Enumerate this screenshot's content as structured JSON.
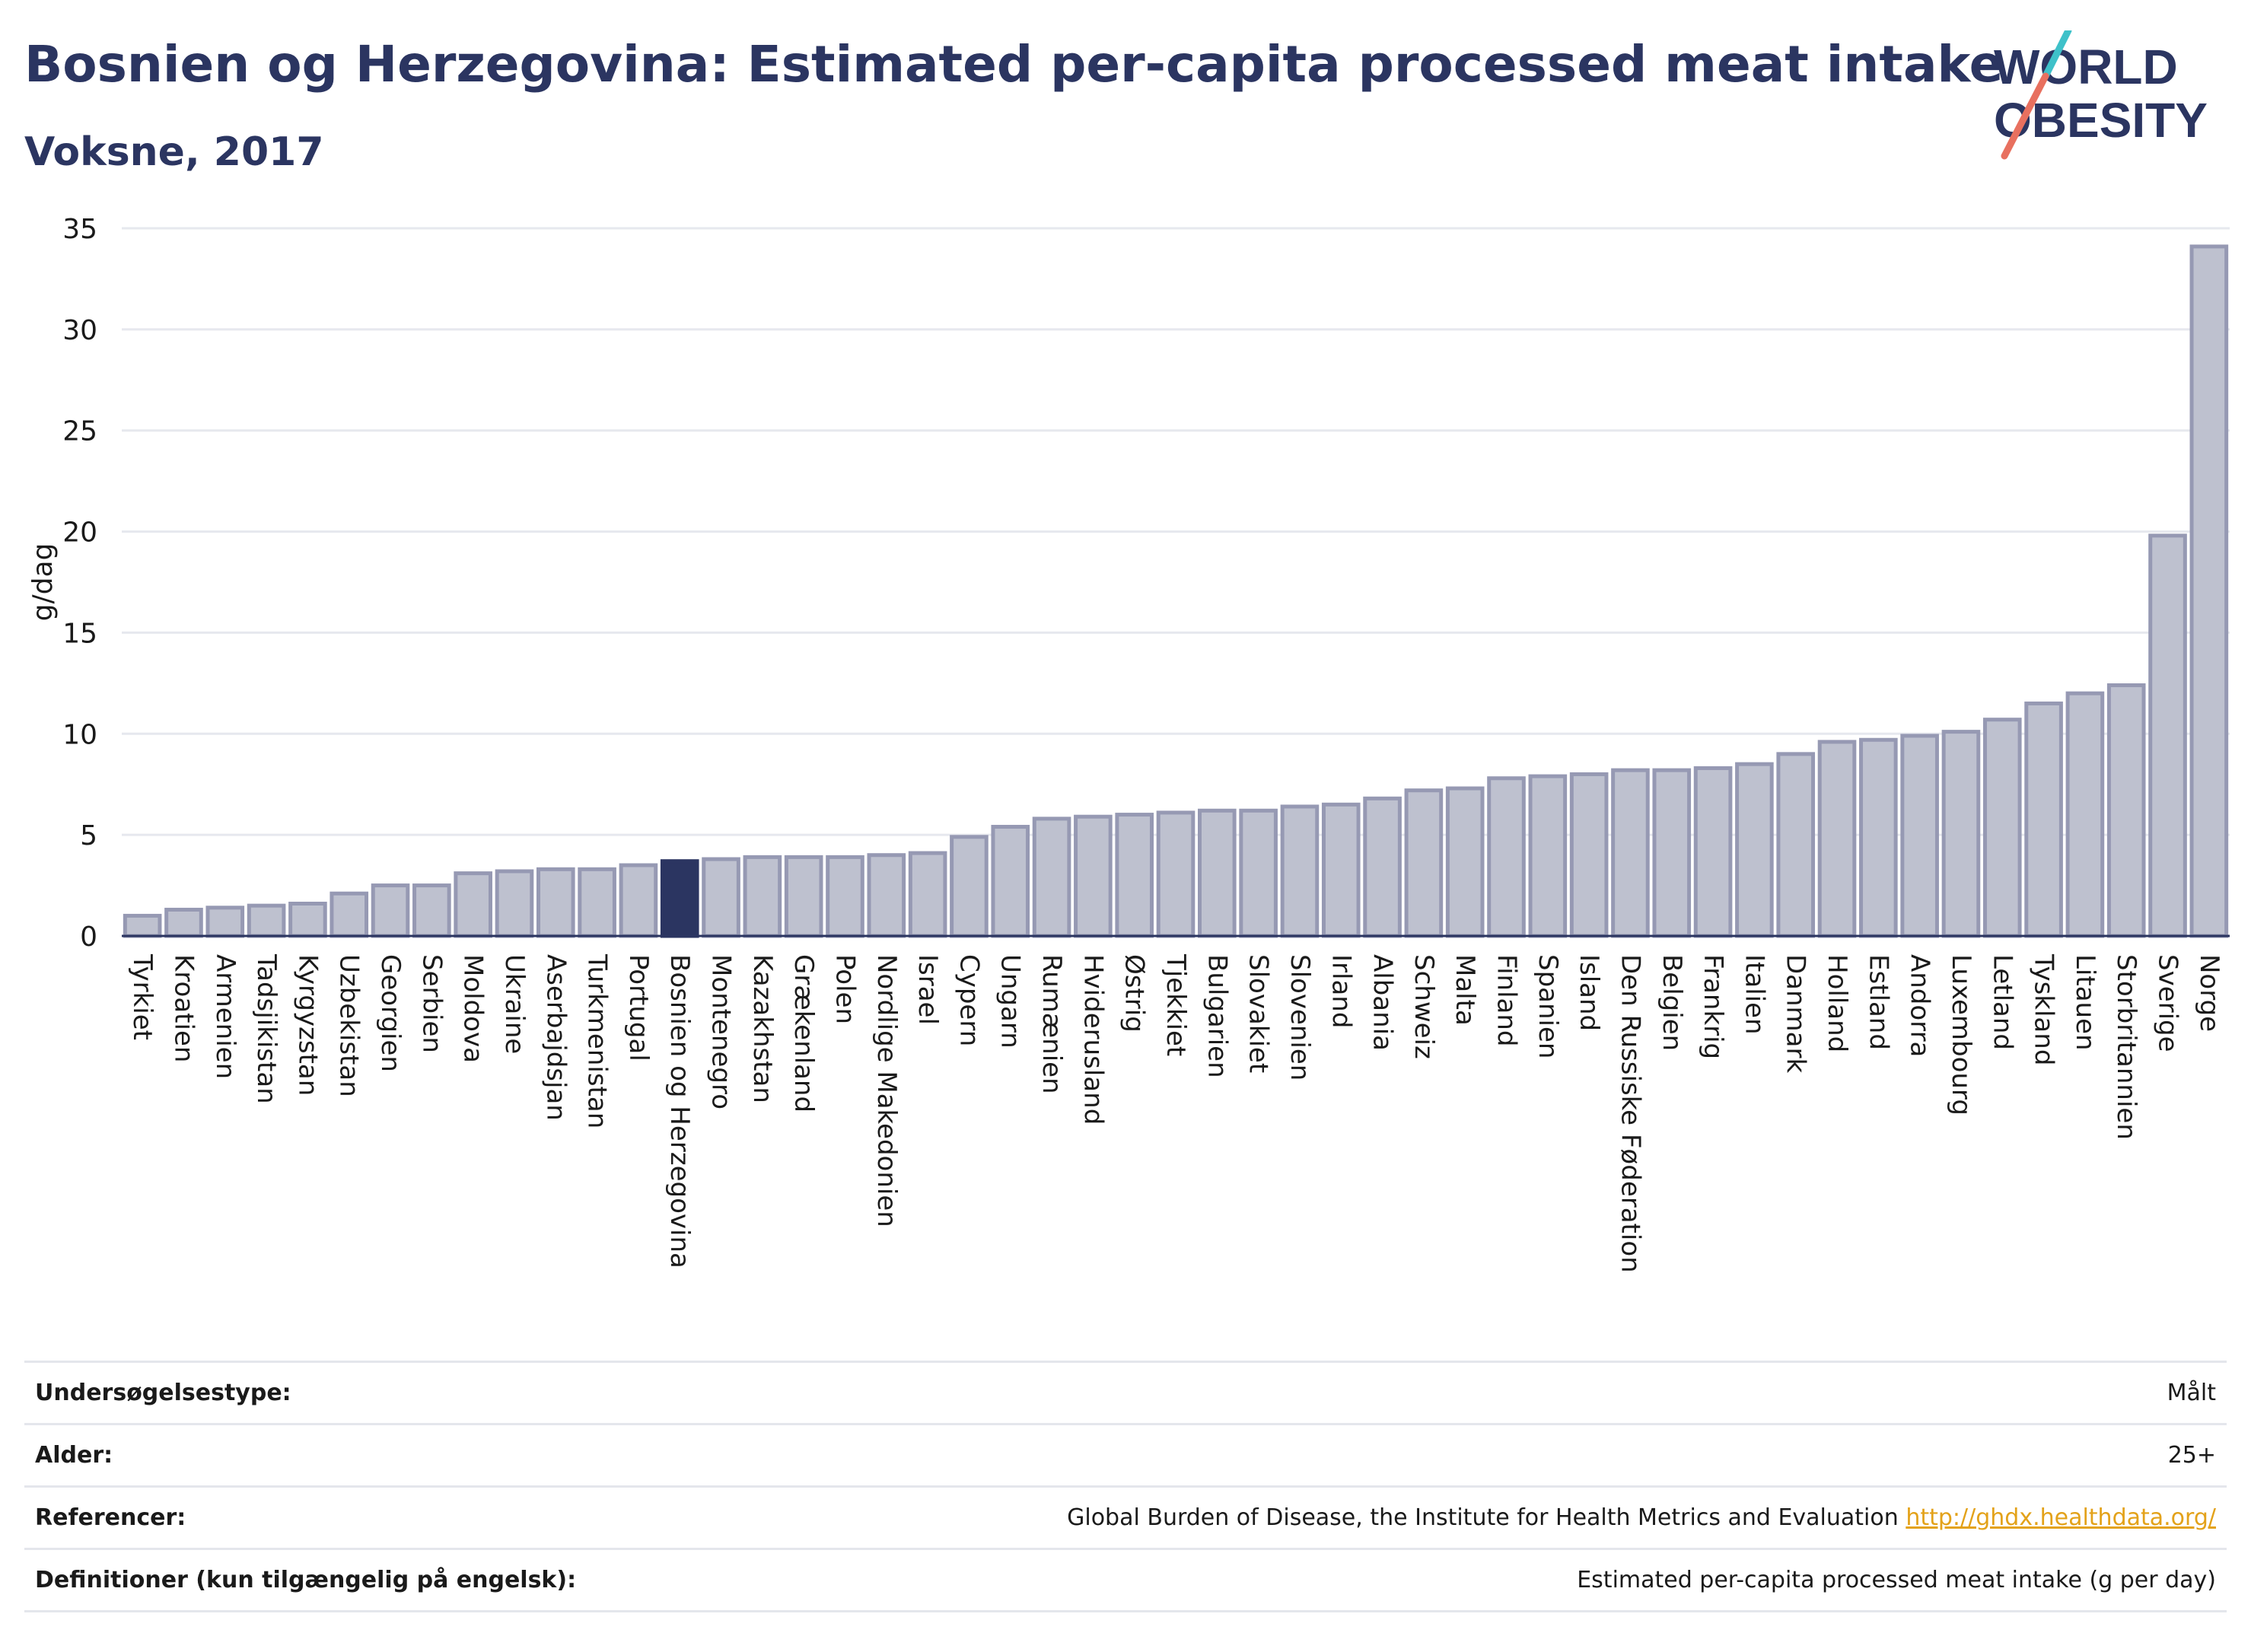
{
  "header": {
    "title": "Bosnien og Herzegovina: Estimated per-capita processed meat intake",
    "subtitle": "Voksne, 2017",
    "logo_line1": "WORLD",
    "logo_line2": "OBESITY"
  },
  "colors": {
    "title": "#2b3561",
    "bar": "#bec1cf",
    "bar_stroke": "#9699b3",
    "highlight": "#2b3561",
    "logo_text": "#2b3561",
    "logo_teal": "#3ec1c9",
    "logo_coral": "#e8705f",
    "link": "#e3a21a"
  },
  "chart_data": {
    "type": "bar",
    "ylabel": "g/dag",
    "ylim": [
      0,
      35
    ],
    "yticks": [
      0,
      5,
      10,
      15,
      20,
      25,
      30,
      35
    ],
    "grid": true,
    "highlight": "Bosnien og Herzegovina",
    "categories": [
      "Tyrkiet",
      "Kroatien",
      "Armenien",
      "Tadsjikistan",
      "Kyrgyzstan",
      "Uzbekistan",
      "Georgien",
      "Serbien",
      "Moldova",
      "Ukraine",
      "Aserbajdsjan",
      "Turkmenistan",
      "Portugal",
      "Bosnien og Herzegovina",
      "Montenegro",
      "Kazakhstan",
      "Grækenland",
      "Polen",
      "Nordlige Makedonien",
      "Israel",
      "Cypern",
      "Ungarn",
      "Rumænien",
      "Hviderusland",
      "Østrig",
      "Tjekkiet",
      "Bulgarien",
      "Slovakiet",
      "Slovenien",
      "Irland",
      "Albania",
      "Schweiz",
      "Malta",
      "Finland",
      "Spanien",
      "Island",
      "Den Russiske Føderation",
      "Belgien",
      "Frankrig",
      "Italien",
      "Danmark",
      "Holland",
      "Estland",
      "Andorra",
      "Luxembourg",
      "Letland",
      "Tyskland",
      "Litauen",
      "Storbritannien",
      "Sverige",
      "Norge"
    ],
    "values": [
      1.0,
      1.3,
      1.4,
      1.5,
      1.6,
      2.1,
      2.5,
      2.5,
      3.1,
      3.2,
      3.3,
      3.3,
      3.5,
      3.7,
      3.8,
      3.9,
      3.9,
      3.9,
      4.0,
      4.1,
      4.9,
      5.4,
      5.8,
      5.9,
      6.0,
      6.1,
      6.2,
      6.2,
      6.4,
      6.5,
      6.8,
      7.2,
      7.3,
      7.8,
      7.9,
      8.0,
      8.2,
      8.2,
      8.3,
      8.5,
      9.0,
      9.6,
      9.7,
      9.9,
      10.1,
      10.7,
      11.5,
      12.0,
      12.4,
      19.8,
      34.1
    ]
  },
  "meta": {
    "survey_type_label": "Undersøgelsestype:",
    "survey_type_value": "Målt",
    "age_label": "Alder:",
    "age_value": "25+",
    "references_label": "Referencer:",
    "references_value": "Global Burden of Disease, the Institute for Health Metrics and Evaluation",
    "references_link": "http://ghdx.healthdata.org/",
    "definitions_label": "Definitioner (kun tilgængelig på engelsk):",
    "definitions_value": "Estimated per-capita processed meat intake (g per day)"
  }
}
